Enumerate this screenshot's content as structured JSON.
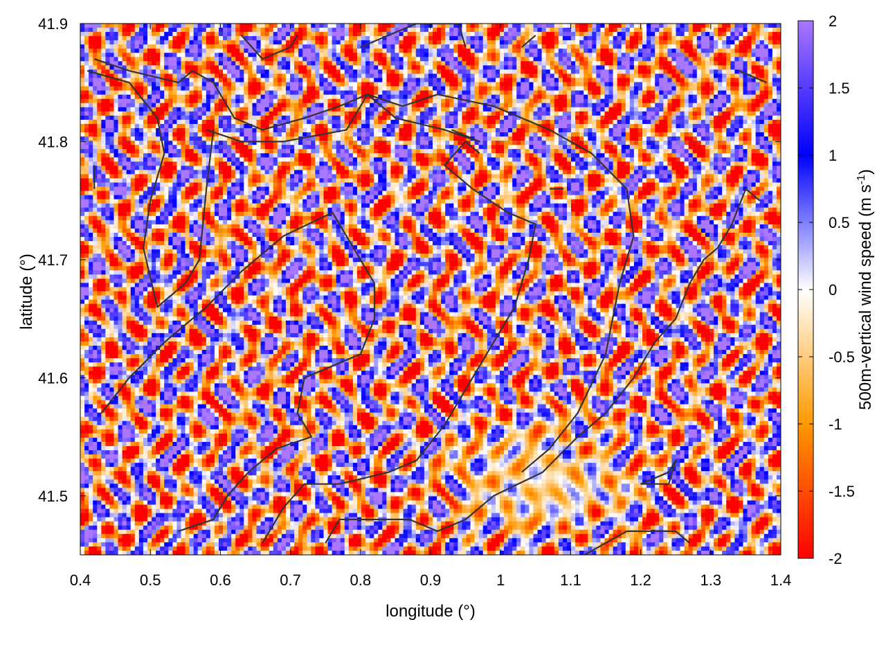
{
  "chart_data": {
    "type": "heatmap",
    "xlabel": "longitude (°)",
    "ylabel": "latitude (°)",
    "colorbar_label": "500m-vertical wind speed (m s",
    "colorbar_label_sup": "-1",
    "colorbar_label_end": ")",
    "xlim": [
      0.4,
      1.4
    ],
    "ylim": [
      41.45,
      41.9
    ],
    "x_ticks": [
      0.4,
      0.5,
      0.6,
      0.7,
      0.8,
      0.9,
      1.0,
      1.1,
      1.2,
      1.3,
      1.4
    ],
    "x_tick_labels": [
      "0.4",
      "0.5",
      "0.6",
      "0.7",
      "0.8",
      "0.9",
      "1",
      "1.1",
      "1.2",
      "1.3",
      "1.4"
    ],
    "y_ticks": [
      41.5,
      41.6,
      41.7,
      41.8,
      41.9
    ],
    "y_tick_labels": [
      "41.5",
      "41.6",
      "41.7",
      "41.8",
      "41.9"
    ],
    "color_range": [
      -2,
      2
    ],
    "colorbar_ticks": [
      2,
      1.5,
      1,
      0.5,
      0,
      -0.5,
      -1,
      -1.5,
      -2
    ],
    "colorbar_tick_labels": [
      "2",
      "1.5",
      "1",
      "0.5",
      "0",
      "-0.5",
      "-1",
      "-1.5",
      "-2"
    ],
    "colormap": [
      {
        "value": -2,
        "color": "#ff0000"
      },
      {
        "value": -1,
        "color": "#ff9900"
      },
      {
        "value": 0,
        "color": "#ffffff"
      },
      {
        "value": 1,
        "color": "#0000ff"
      },
      {
        "value": 2,
        "color": "#aa77ff"
      }
    ],
    "boundary_color": "#333333",
    "boundary_lines": [
      [
        [
          0.42,
          41.87
        ],
        [
          0.47,
          41.86
        ],
        [
          0.54,
          41.85
        ],
        [
          0.56,
          41.86
        ],
        [
          0.59,
          41.85
        ],
        [
          0.62,
          41.82
        ],
        [
          0.66,
          41.81
        ],
        [
          0.72,
          41.82
        ],
        [
          0.77,
          41.83
        ],
        [
          0.81,
          41.84
        ],
        [
          0.86,
          41.83
        ],
        [
          0.91,
          41.84
        ],
        [
          0.99,
          41.83
        ],
        [
          1.07,
          41.81
        ],
        [
          1.13,
          41.79
        ],
        [
          1.18,
          41.76
        ],
        [
          1.19,
          41.72
        ],
        [
          1.17,
          41.68
        ],
        [
          1.15,
          41.62
        ],
        [
          1.11,
          41.57
        ],
        [
          1.07,
          41.54
        ],
        [
          1.03,
          41.52
        ]
      ],
      [
        [
          0.58,
          41.81
        ],
        [
          0.63,
          41.8
        ],
        [
          0.69,
          41.8
        ],
        [
          0.78,
          41.81
        ],
        [
          0.81,
          41.84
        ],
        [
          0.85,
          41.82
        ],
        [
          0.92,
          41.81
        ],
        [
          0.97,
          41.8
        ],
        [
          0.93,
          41.81
        ]
      ],
      [
        [
          0.41,
          41.86
        ],
        [
          0.47,
          41.85
        ],
        [
          0.51,
          41.82
        ],
        [
          0.52,
          41.79
        ],
        [
          0.5,
          41.75
        ],
        [
          0.49,
          41.71
        ],
        [
          0.51,
          41.66
        ],
        [
          0.55,
          41.68
        ],
        [
          0.57,
          41.7
        ],
        [
          0.58,
          41.76
        ],
        [
          0.59,
          41.81
        ]
      ],
      [
        [
          0.42,
          41.76
        ],
        [
          0.42,
          41.78
        ]
      ],
      [
        [
          0.43,
          41.57
        ],
        [
          0.47,
          41.6
        ],
        [
          0.52,
          41.63
        ],
        [
          0.58,
          41.66
        ],
        [
          0.63,
          41.69
        ],
        [
          0.69,
          41.72
        ],
        [
          0.76,
          41.74
        ],
        [
          0.79,
          41.71
        ],
        [
          0.82,
          41.68
        ],
        [
          0.82,
          41.65
        ],
        [
          0.8,
          41.62
        ],
        [
          0.76,
          41.61
        ],
        [
          0.72,
          41.6
        ],
        [
          0.71,
          41.57
        ],
        [
          0.73,
          41.55
        ],
        [
          0.68,
          41.54
        ],
        [
          0.64,
          41.52
        ],
        [
          0.61,
          41.5
        ],
        [
          0.59,
          41.48
        ],
        [
          0.54,
          41.47
        ]
      ],
      [
        [
          0.66,
          41.46
        ],
        [
          0.69,
          41.49
        ],
        [
          0.72,
          41.51
        ],
        [
          0.77,
          41.51
        ],
        [
          0.84,
          41.52
        ],
        [
          0.88,
          41.53
        ],
        [
          0.92,
          41.56
        ],
        [
          0.96,
          41.6
        ],
        [
          0.99,
          41.63
        ],
        [
          1.02,
          41.66
        ],
        [
          1.04,
          41.7
        ],
        [
          1.05,
          41.73
        ],
        [
          1.01,
          41.74
        ],
        [
          0.96,
          41.76
        ],
        [
          0.92,
          41.78
        ],
        [
          0.95,
          41.8
        ],
        [
          0.97,
          41.79
        ]
      ],
      [
        [
          0.75,
          41.46
        ],
        [
          0.77,
          41.48
        ],
        [
          0.82,
          41.48
        ],
        [
          0.87,
          41.48
        ],
        [
          0.91,
          41.47
        ],
        [
          0.95,
          41.48
        ],
        [
          0.99,
          41.5
        ],
        [
          1.06,
          41.52
        ],
        [
          1.11,
          41.55
        ],
        [
          1.15,
          41.57
        ],
        [
          1.19,
          41.6
        ],
        [
          1.22,
          41.63
        ],
        [
          1.25,
          41.65
        ],
        [
          1.27,
          41.68
        ],
        [
          1.29,
          41.7
        ],
        [
          1.31,
          41.71
        ],
        [
          1.33,
          41.73
        ],
        [
          1.35,
          41.76
        ],
        [
          1.37,
          41.75
        ]
      ],
      [
        [
          1.2,
          41.51
        ],
        [
          1.24,
          41.51
        ],
        [
          1.25,
          41.53
        ],
        [
          1.24,
          41.52
        ],
        [
          1.2,
          41.51
        ]
      ],
      [
        [
          1.12,
          41.45
        ],
        [
          1.18,
          41.47
        ],
        [
          1.25,
          41.47
        ],
        [
          1.27,
          41.46
        ]
      ],
      [
        [
          1.34,
          41.86
        ],
        [
          1.38,
          41.85
        ]
      ],
      [
        [
          0.63,
          41.89
        ],
        [
          0.66,
          41.87
        ],
        [
          0.7,
          41.88
        ],
        [
          0.71,
          41.89
        ]
      ],
      [
        [
          0.8,
          41.88
        ],
        [
          0.84,
          41.89
        ],
        [
          0.88,
          41.9
        ],
        [
          0.94,
          41.9
        ],
        [
          0.95,
          41.88
        ]
      ],
      [
        [
          1.03,
          41.88
        ],
        [
          1.05,
          41.89
        ]
      ],
      [
        [
          1.07,
          41.76
        ],
        [
          1.09,
          41.76
        ]
      ]
    ]
  }
}
